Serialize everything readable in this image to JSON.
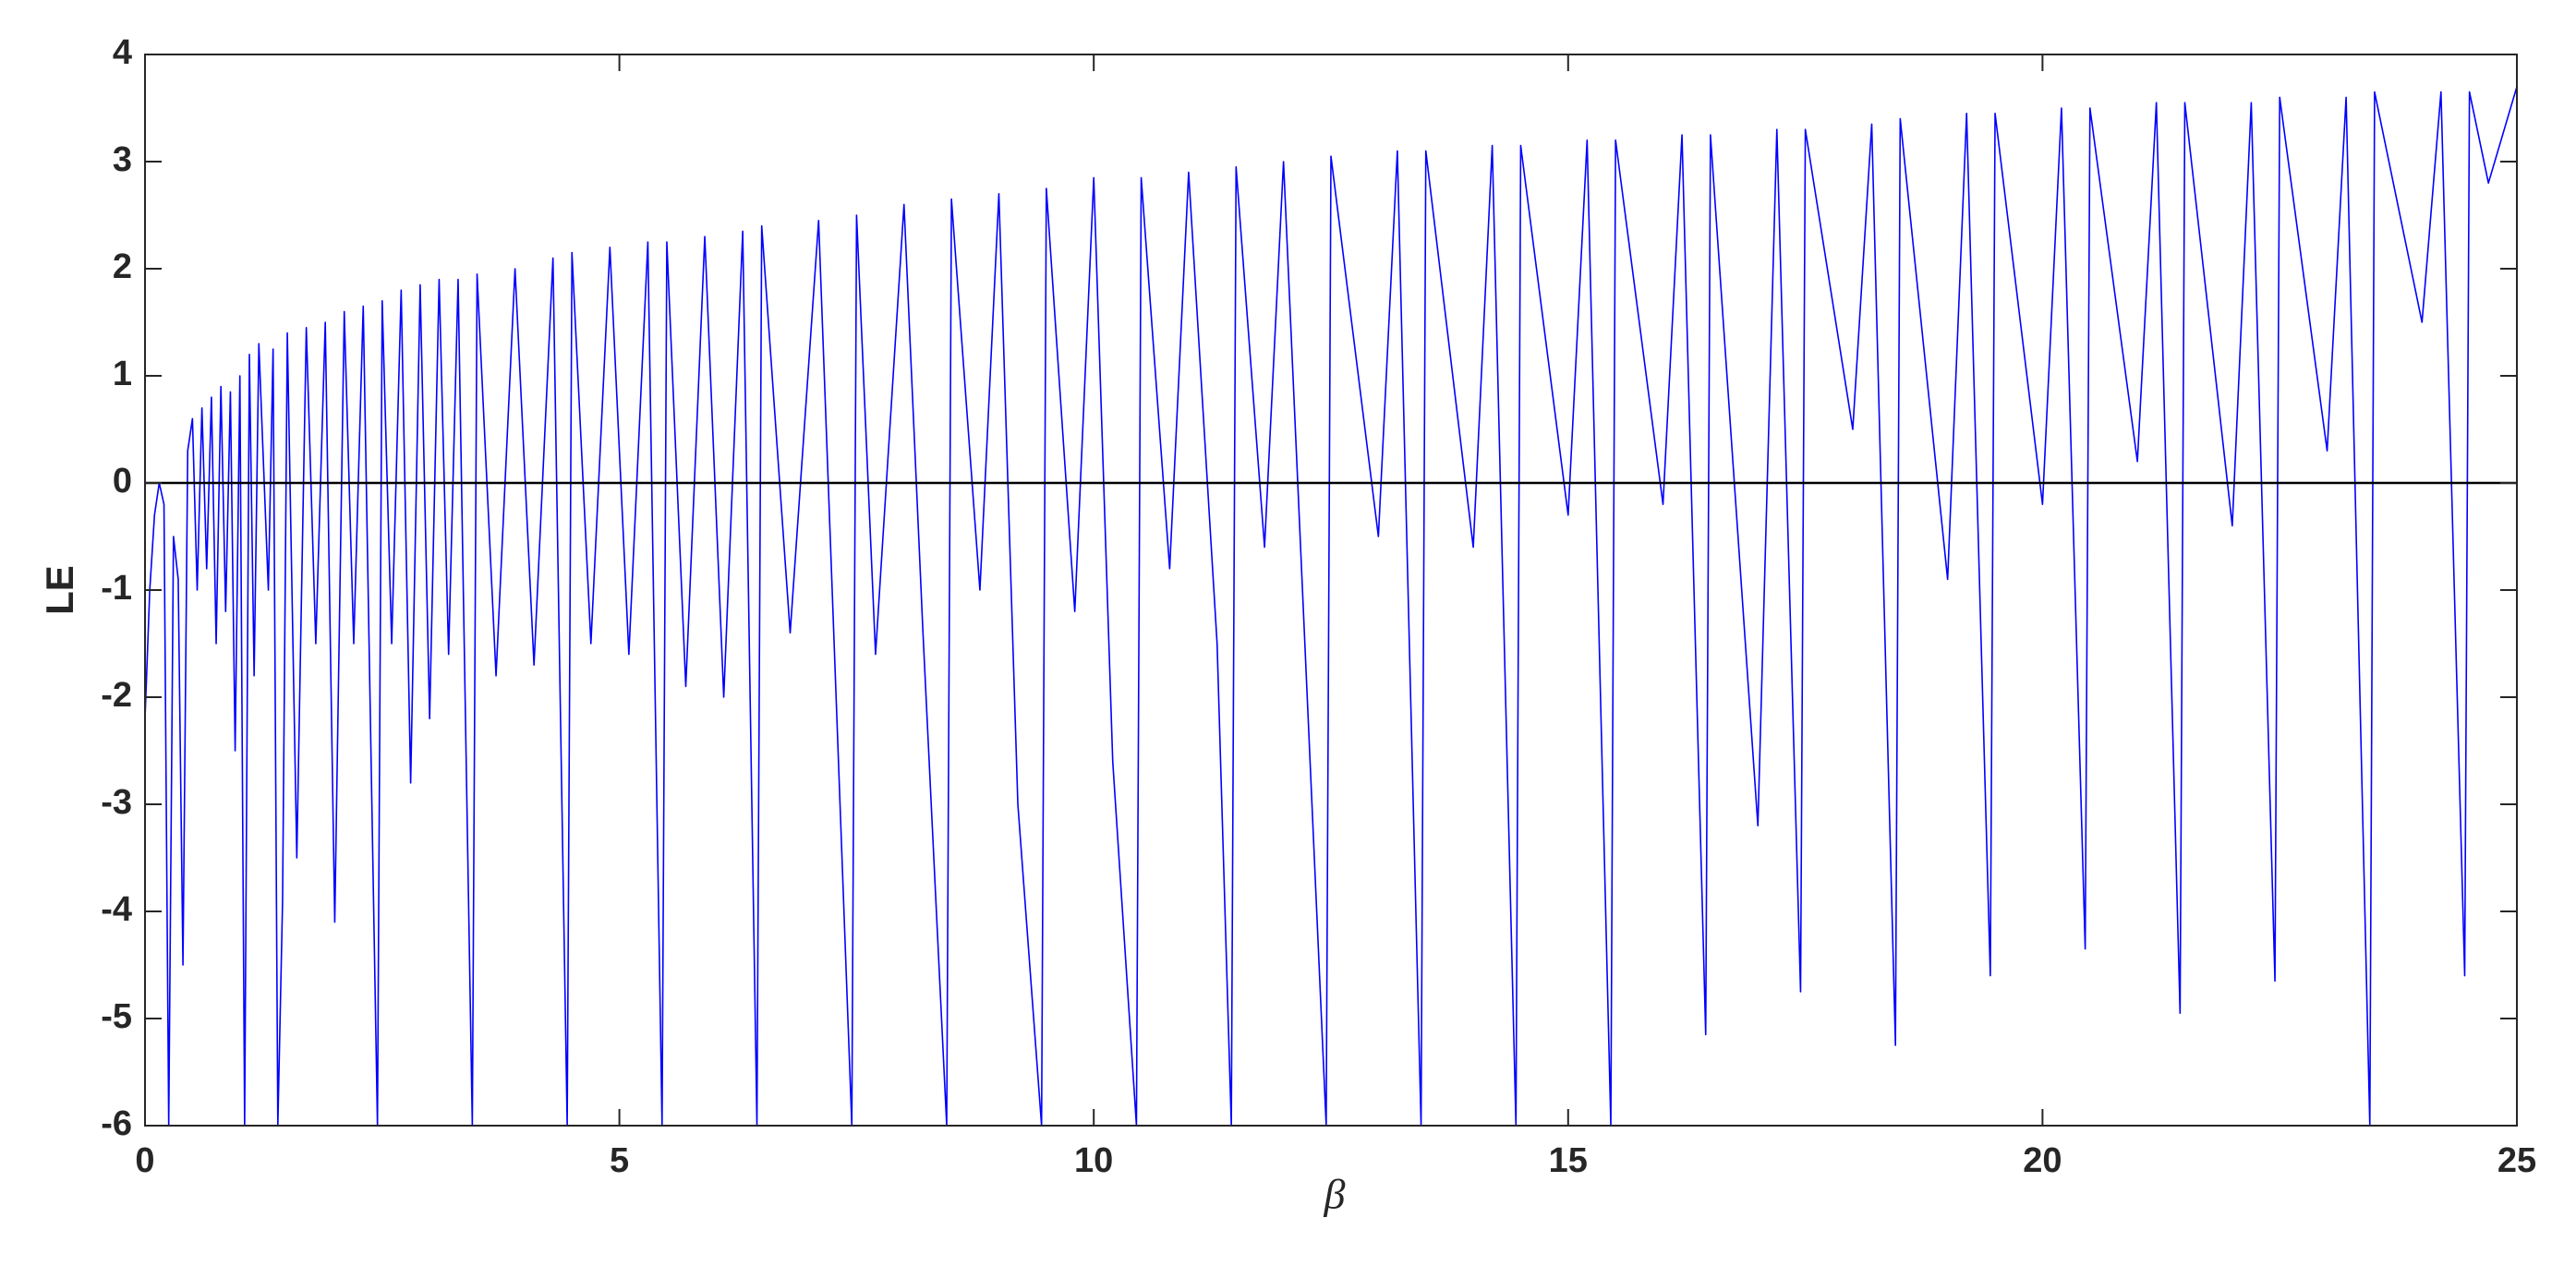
{
  "chart_data": {
    "type": "line",
    "xlabel": "β",
    "ylabel": "LE",
    "x": [
      0,
      0.05,
      0.1,
      0.15,
      0.2,
      0.25,
      0.3,
      0.35,
      0.4,
      0.45,
      0.5,
      0.55,
      0.6,
      0.65,
      0.7,
      0.75,
      0.8,
      0.85,
      0.9,
      0.95,
      1.0,
      1.05,
      1.1,
      1.15,
      1.2,
      1.3,
      1.35,
      1.4,
      1.45,
      1.5,
      1.6,
      1.7,
      1.8,
      1.9,
      2.0,
      2.1,
      2.2,
      2.3,
      2.45,
      2.5,
      2.6,
      2.7,
      2.8,
      2.9,
      3.0,
      3.1,
      3.2,
      3.3,
      3.45,
      3.5,
      3.7,
      3.9,
      4.1,
      4.3,
      4.45,
      4.5,
      4.7,
      4.9,
      5.1,
      5.3,
      5.45,
      5.5,
      5.7,
      5.9,
      6.1,
      6.3,
      6.45,
      6.5,
      6.8,
      7.1,
      7.45,
      7.5,
      7.7,
      8.0,
      8.2,
      8.45,
      8.5,
      8.8,
      9.0,
      9.2,
      9.45,
      9.5,
      9.8,
      10.0,
      10.2,
      10.45,
      10.5,
      10.8,
      11.0,
      11.3,
      11.45,
      11.5,
      11.8,
      12.0,
      12.45,
      12.5,
      13.0,
      13.2,
      13.45,
      13.5,
      14.0,
      14.2,
      14.45,
      14.5,
      15.0,
      15.2,
      15.45,
      15.5,
      16.0,
      16.2,
      16.45,
      16.5,
      17.0,
      17.2,
      17.45,
      17.5,
      18.0,
      18.2,
      18.45,
      18.5,
      19.0,
      19.2,
      19.45,
      19.5,
      20.0,
      20.2,
      20.45,
      20.5,
      21.0,
      21.2,
      21.45,
      21.5,
      22.0,
      22.2,
      22.45,
      22.5,
      23.0,
      23.2,
      23.45,
      23.5,
      24.0,
      24.2,
      24.45,
      24.5,
      24.7,
      25.0
    ],
    "values": [
      -2.2,
      -1,
      -0.3,
      0,
      -0.2,
      -6,
      -0.5,
      -0.9,
      -4.5,
      0.3,
      0.6,
      -1,
      0.7,
      -0.8,
      0.8,
      -1.5,
      0.9,
      -1.2,
      0.85,
      -2.5,
      1.0,
      -6,
      1.2,
      -1.8,
      1.3,
      -1,
      1.25,
      -6,
      -3.9,
      1.4,
      -3.5,
      1.45,
      -1.5,
      1.5,
      -4.1,
      1.6,
      -1.5,
      1.65,
      -6,
      1.7,
      -1.5,
      1.8,
      -2.8,
      1.85,
      -2.2,
      1.9,
      -1.6,
      1.9,
      -6,
      1.95,
      -1.8,
      2.0,
      -1.7,
      2.1,
      -6,
      2.15,
      -1.5,
      2.2,
      -1.6,
      2.25,
      -6,
      2.25,
      -1.9,
      2.3,
      -2.0,
      2.35,
      -6,
      2.4,
      -1.4,
      2.45,
      -6,
      2.5,
      -1.6,
      2.6,
      -1.4,
      -6,
      2.65,
      -1.0,
      2.7,
      -3.0,
      -6,
      2.75,
      -1.2,
      2.85,
      -2.6,
      -6,
      2.85,
      -0.8,
      2.9,
      -1.5,
      -6,
      2.95,
      -0.6,
      3.0,
      -6,
      3.05,
      -0.5,
      3.1,
      -6,
      3.1,
      -0.6,
      3.15,
      -6,
      3.15,
      -0.3,
      3.2,
      -6,
      3.2,
      -0.2,
      3.25,
      -5.15,
      3.25,
      -3.2,
      3.3,
      -4.75,
      3.3,
      0.5,
      3.35,
      -5.25,
      3.4,
      -0.9,
      3.45,
      -4.6,
      3.45,
      -0.2,
      3.5,
      -4.35,
      3.5,
      0.2,
      3.55,
      -4.95,
      3.55,
      -0.4,
      3.55,
      -4.65,
      3.6,
      0.3,
      3.6,
      -6,
      3.65,
      1.5,
      3.65,
      -4.6,
      3.65,
      2.8,
      3.7
    ],
    "color": "#0000ff",
    "reference_line": 0,
    "xlim": [
      0,
      25
    ],
    "xticks": [
      0,
      5,
      10,
      15,
      20,
      25
    ],
    "ylim": [
      -6,
      4
    ],
    "yticks": [
      -6,
      -5,
      -4,
      -3,
      -2,
      -1,
      0,
      1,
      2,
      3,
      4
    ],
    "grid": false
  }
}
